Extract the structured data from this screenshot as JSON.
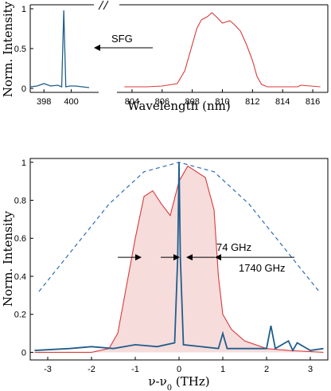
{
  "colors": {
    "red": "#d93a3a",
    "blue": "#1f5f8b",
    "fill": "#f7dcdc",
    "dashed": "#2f6db5",
    "axis": "#000000"
  },
  "chart_data": [
    {
      "type": "line",
      "ylabel": "Norm. Intensity",
      "xlabel": "Wavelength (nm)",
      "ylim": [
        -0.05,
        1.05
      ],
      "left_xlim": [
        397,
        402
      ],
      "right_xlim": [
        803,
        817
      ],
      "left_xticks": [
        "398",
        "400"
      ],
      "right_xticks": [
        "804",
        "806",
        "808",
        "810",
        "812",
        "814",
        "816"
      ],
      "yticks": [
        "0",
        "0.5",
        "1"
      ],
      "annotation": "SFG",
      "series": [
        {
          "color": "blue",
          "x": [
            397,
            397.5,
            398,
            398.5,
            399,
            399.3,
            399.45,
            399.6,
            399.9,
            400.3,
            400.8,
            401.3
          ],
          "y": [
            0.02,
            0.03,
            0.06,
            0.03,
            0.04,
            0.02,
            0.98,
            0.02,
            0.03,
            0.03,
            0.02,
            0.01
          ]
        },
        {
          "color": "red",
          "x": [
            803.5,
            805,
            806,
            807,
            807.5,
            808,
            808.3,
            808.6,
            809,
            809.3,
            809.6,
            810,
            810.5,
            810.8,
            811.2,
            811.6,
            812,
            812.3,
            812.6,
            813,
            814,
            815,
            815.2,
            816.5
          ],
          "y": [
            0.02,
            0.02,
            0.03,
            0.06,
            0.22,
            0.55,
            0.75,
            0.86,
            0.9,
            0.95,
            0.9,
            0.82,
            0.85,
            0.8,
            0.72,
            0.55,
            0.35,
            0.15,
            0.05,
            0.02,
            0.02,
            0.02,
            0.04,
            0.02
          ]
        }
      ]
    },
    {
      "type": "line",
      "ylabel": "Norm. Intensity",
      "xlabel": "ν-ν",
      "xlabel_sub": "0",
      "xlabel_unit": " (THz)",
      "xlim": [
        -3.4,
        3.4
      ],
      "ylim": [
        -0.04,
        1.02
      ],
      "xticks": [
        "-3",
        "-2",
        "-1",
        "0",
        "1",
        "2",
        "3"
      ],
      "yticks": [
        "0",
        "0.2",
        "0.4",
        "0.6",
        "0.8",
        "1"
      ],
      "annotations": [
        "74 GHz",
        "1740 GHz"
      ],
      "series": [
        {
          "color": "red",
          "fill": true,
          "x": [
            -3.3,
            -2,
            -1.6,
            -1.4,
            -1.2,
            -1.0,
            -0.8,
            -0.6,
            -0.4,
            -0.2,
            0,
            0.2,
            0.4,
            0.6,
            0.8,
            0.9,
            1.0,
            1.2,
            1.5,
            2.0,
            2.5,
            3.3
          ],
          "y": [
            0.0,
            0.0,
            0.02,
            0.1,
            0.35,
            0.6,
            0.82,
            0.85,
            0.78,
            0.72,
            0.9,
            0.98,
            0.95,
            0.92,
            0.75,
            0.4,
            0.2,
            0.12,
            0.06,
            0.02,
            0.01,
            0.0
          ]
        },
        {
          "color": "blue",
          "x": [
            -3.3,
            -2.5,
            -2.0,
            -1.5,
            -1.0,
            -0.5,
            -0.1,
            -0.03,
            0,
            0.03,
            0.1,
            0.5,
            0.9,
            1.0,
            1.1,
            1.5,
            2.0,
            2.1,
            2.2,
            2.5,
            2.6,
            2.7,
            3.0,
            3.3
          ],
          "y": [
            0.01,
            0.02,
            0.03,
            0.02,
            0.04,
            0.03,
            0.05,
            0.5,
            1.0,
            0.5,
            0.04,
            0.03,
            0.02,
            0.1,
            0.02,
            0.02,
            0.02,
            0.14,
            0.02,
            0.06,
            0.01,
            0.05,
            0.01,
            0.02
          ]
        },
        {
          "color": "dashed",
          "style": "dashed",
          "x": [
            -3.2,
            -2.4,
            -1.6,
            -0.8,
            0,
            0.8,
            1.6,
            2.4,
            3.2
          ],
          "y": [
            0.32,
            0.55,
            0.78,
            0.95,
            1.0,
            0.95,
            0.78,
            0.55,
            0.32
          ]
        }
      ]
    }
  ]
}
